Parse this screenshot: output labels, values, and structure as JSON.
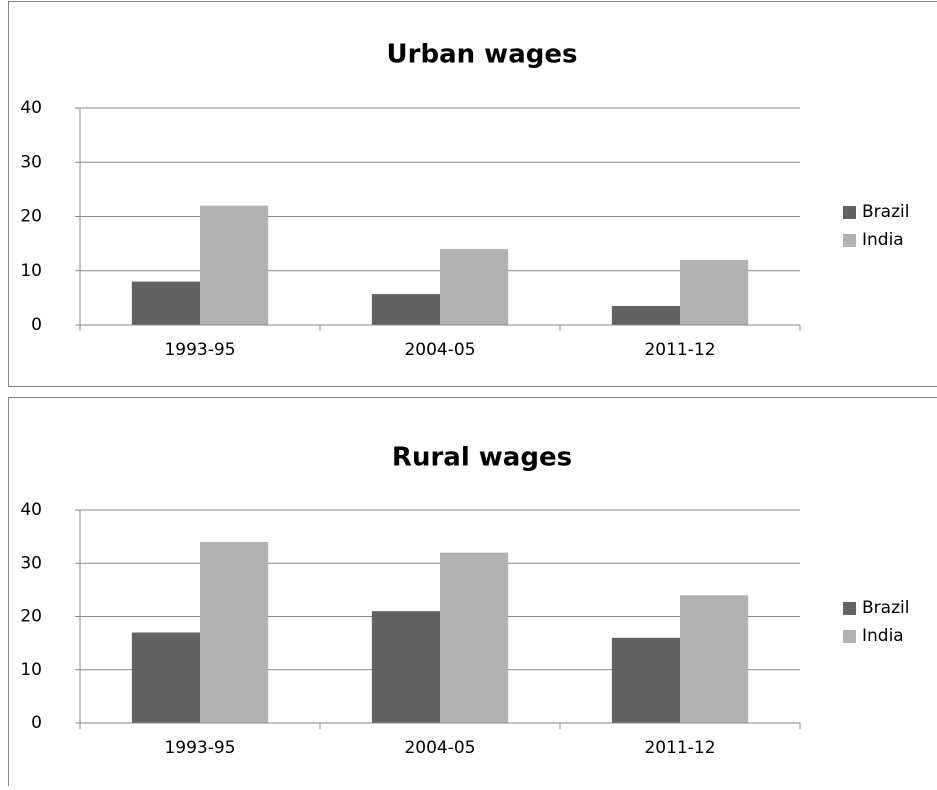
{
  "chart_data": [
    {
      "type": "bar",
      "title": "Urban wages",
      "categories": [
        "1993-95",
        "2004-05",
        "2011-12"
      ],
      "series": [
        {
          "name": "Brazil",
          "color": "#636363",
          "values": [
            8,
            5.7,
            3.5
          ]
        },
        {
          "name": "India",
          "color": "#b2b2b2",
          "values": [
            22,
            14,
            12
          ]
        }
      ],
      "ylim": [
        0,
        40
      ],
      "yticks": [
        0,
        10,
        20,
        30,
        40
      ],
      "grid": true,
      "legend": "right"
    },
    {
      "type": "bar",
      "title": "Rural wages",
      "categories": [
        "1993-95",
        "2004-05",
        "2011-12"
      ],
      "series": [
        {
          "name": "Brazil",
          "color": "#636363",
          "values": [
            17,
            21,
            16
          ]
        },
        {
          "name": "India",
          "color": "#b2b2b2",
          "values": [
            34,
            32,
            24
          ]
        }
      ],
      "ylim": [
        0,
        40
      ],
      "yticks": [
        0,
        10,
        20,
        30,
        40
      ],
      "grid": true,
      "legend": "right"
    }
  ]
}
